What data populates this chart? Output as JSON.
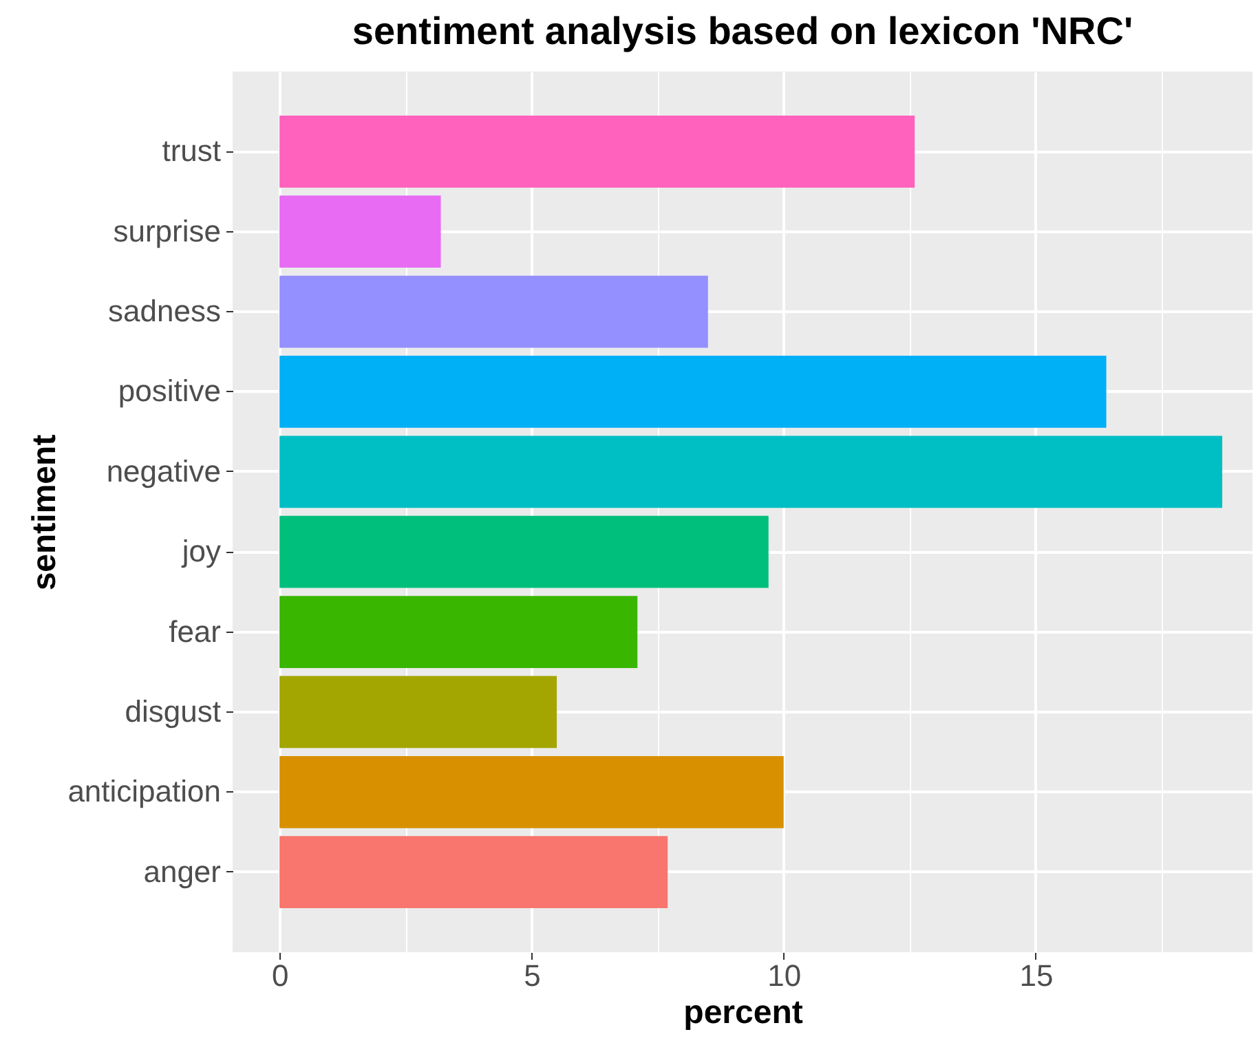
{
  "chart_data": {
    "type": "bar",
    "orientation": "horizontal",
    "title": "sentiment analysis based on lexicon 'NRC'",
    "xlabel": "percent",
    "ylabel": "sentiment",
    "categories": [
      "trust",
      "surprise",
      "sadness",
      "positive",
      "negative",
      "joy",
      "fear",
      "disgust",
      "anticipation",
      "anger"
    ],
    "values": [
      12.6,
      3.2,
      8.5,
      16.4,
      18.7,
      9.7,
      7.1,
      5.5,
      10.0,
      7.7
    ],
    "colors": [
      "#ff62bc",
      "#e76bf3",
      "#9590ff",
      "#00b0f6",
      "#00bfc4",
      "#00bf7d",
      "#39b600",
      "#a3a500",
      "#d89000",
      "#f8766d"
    ],
    "xlim": [
      -0.93,
      19.3
    ],
    "xticks": [
      0,
      {
        "value": 2.5,
        "label": null
      },
      5,
      {
        "value": 7.5,
        "label": null
      },
      10,
      {
        "value": 12.5,
        "label": null
      },
      15,
      {
        "value": 17.5,
        "label": null
      }
    ],
    "grid": true,
    "legend": false
  }
}
